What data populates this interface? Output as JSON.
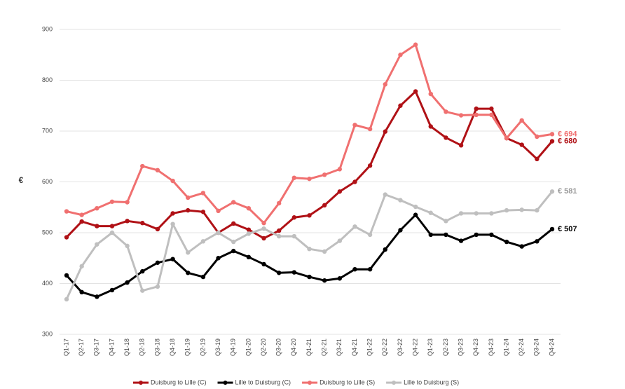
{
  "chart_data": {
    "type": "line",
    "y_label": "€",
    "categories": [
      "Q1-17",
      "Q2-17",
      "Q3-17",
      "Q4-17",
      "Q1-18",
      "Q2-18",
      "Q3-18",
      "Q4-18",
      "Q1-19",
      "Q2-19",
      "Q3-19",
      "Q4-19",
      "Q1-20",
      "Q2-20",
      "Q3-20",
      "Q4-20",
      "Q1-21",
      "Q2-21",
      "Q3-21",
      "Q4-21",
      "Q1-22",
      "Q2-22",
      "Q3-22",
      "Q4-22",
      "Q1-23",
      "Q2-23",
      "Q3-23",
      "Q4-23",
      "Q4-23",
      "Q1-24",
      "Q2-24",
      "Q3-24",
      "Q4-24"
    ],
    "ylim": [
      300,
      900
    ],
    "yticks": [
      300,
      400,
      500,
      600,
      700,
      800,
      900
    ],
    "grid": true,
    "legend": "bottom",
    "series": [
      {
        "name": "Duisburg to Lille (C)",
        "color": "#b01116",
        "values": [
          491,
          522,
          513,
          513,
          523,
          519,
          507,
          538,
          544,
          541,
          500,
          518,
          506,
          489,
          504,
          530,
          534,
          554,
          581,
          600,
          632,
          699,
          750,
          778,
          709,
          687,
          672,
          744,
          744,
          686,
          673,
          645,
          680
        ],
        "value_labels": [
          null,
          null,
          null,
          null,
          null,
          null,
          null,
          null,
          null,
          null,
          null,
          null,
          null,
          null,
          null,
          null,
          null,
          null,
          null,
          null,
          null,
          null,
          null,
          null,
          null,
          null,
          null,
          null,
          null,
          null,
          null,
          null,
          "€ 680"
        ]
      },
      {
        "name": "Lille to Duisburg (C)",
        "color": "#000000",
        "values": [
          416,
          383,
          374,
          387,
          402,
          424,
          441,
          448,
          421,
          413,
          450,
          464,
          452,
          438,
          421,
          422,
          413,
          406,
          410,
          428,
          428,
          467,
          505,
          535,
          496,
          496,
          484,
          496,
          496,
          482,
          473,
          483,
          507
        ],
        "value_labels": [
          null,
          null,
          null,
          null,
          null,
          null,
          null,
          null,
          null,
          null,
          null,
          null,
          null,
          null,
          null,
          null,
          null,
          null,
          null,
          null,
          null,
          null,
          null,
          null,
          null,
          null,
          null,
          null,
          null,
          null,
          null,
          null,
          "€ 507"
        ]
      },
      {
        "name": "Duisburg to Lille (S)",
        "color": "#f07070",
        "values": [
          542,
          535,
          548,
          561,
          560,
          631,
          623,
          602,
          569,
          578,
          543,
          560,
          548,
          519,
          558,
          608,
          606,
          614,
          625,
          712,
          704,
          792,
          850,
          870,
          773,
          738,
          731,
          732,
          732,
          686,
          721,
          689,
          694
        ],
        "value_labels": [
          null,
          null,
          null,
          null,
          null,
          null,
          null,
          null,
          null,
          null,
          null,
          null,
          null,
          null,
          null,
          null,
          null,
          null,
          null,
          null,
          null,
          null,
          null,
          null,
          null,
          null,
          null,
          null,
          null,
          null,
          null,
          null,
          "€ 694"
        ]
      },
      {
        "name": "Lille to Duisburg (S)",
        "color": "#bfbfbf",
        "values": [
          369,
          434,
          477,
          500,
          474,
          386,
          394,
          517,
          461,
          483,
          500,
          482,
          498,
          508,
          493,
          493,
          468,
          463,
          484,
          512,
          496,
          575,
          564,
          551,
          539,
          523,
          538,
          538,
          538,
          544,
          545,
          544,
          581
        ],
        "value_labels": [
          null,
          null,
          null,
          null,
          null,
          null,
          null,
          null,
          null,
          null,
          null,
          null,
          null,
          null,
          null,
          null,
          null,
          null,
          null,
          null,
          null,
          null,
          null,
          null,
          null,
          null,
          null,
          null,
          null,
          null,
          null,
          null,
          "€ 581"
        ]
      }
    ]
  }
}
